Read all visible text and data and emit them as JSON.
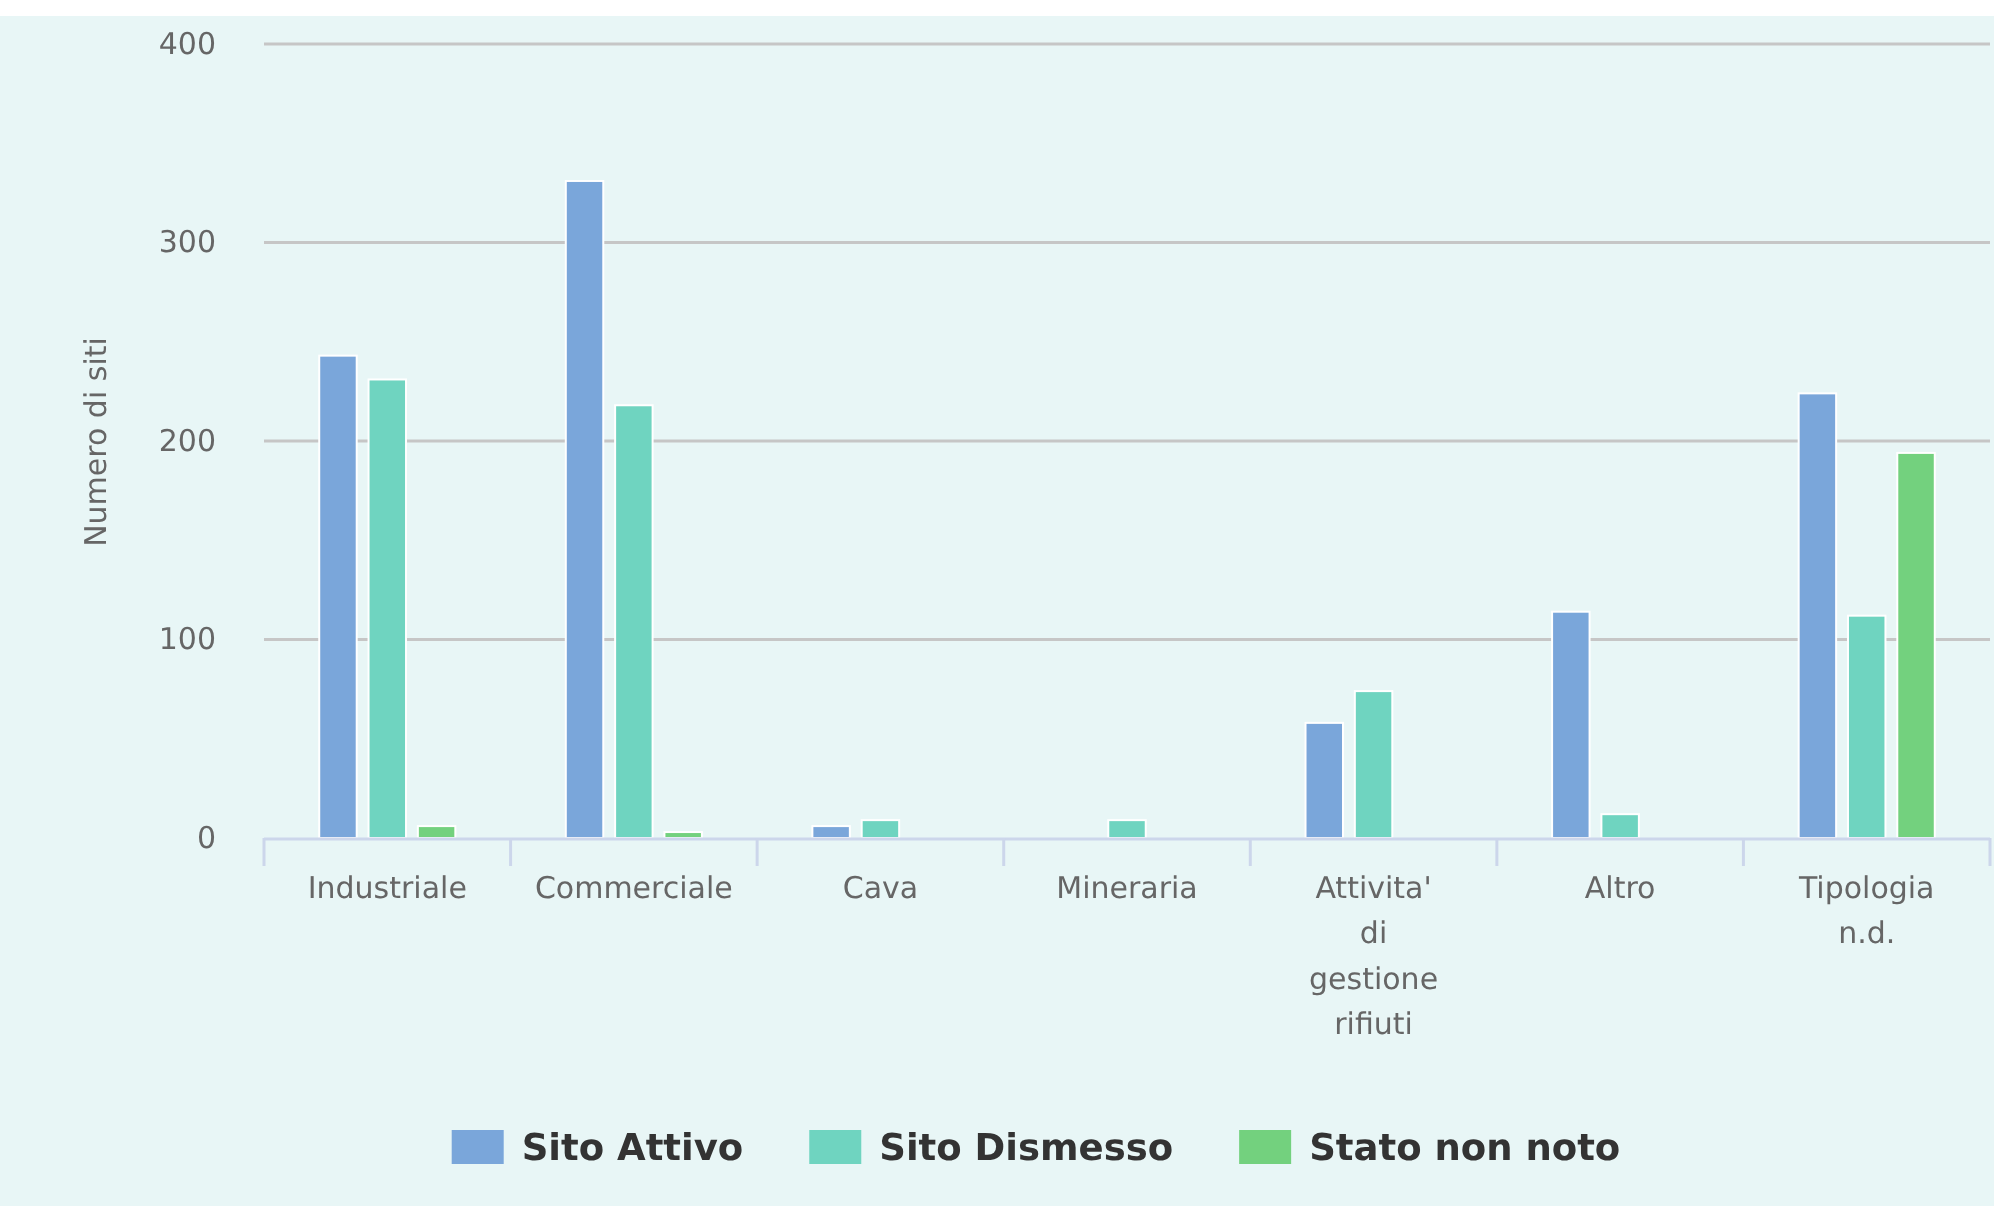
{
  "chart_data": {
    "type": "bar",
    "categories": [
      "Industriale",
      "Commerciale",
      "Cava",
      "Mineraria",
      "Attivita' di gestione rifiuti",
      "Altro",
      "Tipologia n.d."
    ],
    "ylabel": "Numero di siti",
    "ylim": [
      0,
      400
    ],
    "yticks": [
      0,
      100,
      200,
      300,
      400
    ],
    "grid": "y",
    "legend": "bottom",
    "series": [
      {
        "name": "Sito Attivo",
        "color": "#7aa6da",
        "values": [
          243,
          331,
          6,
          0,
          58,
          114,
          224
        ]
      },
      {
        "name": "Sito Dismesso",
        "color": "#6fd4c0",
        "values": [
          231,
          218,
          9,
          9,
          74,
          12,
          112
        ]
      },
      {
        "name": "Stato non noto",
        "color": "#73d17e",
        "values": [
          6,
          3,
          0,
          0,
          0,
          0,
          194
        ]
      }
    ]
  }
}
